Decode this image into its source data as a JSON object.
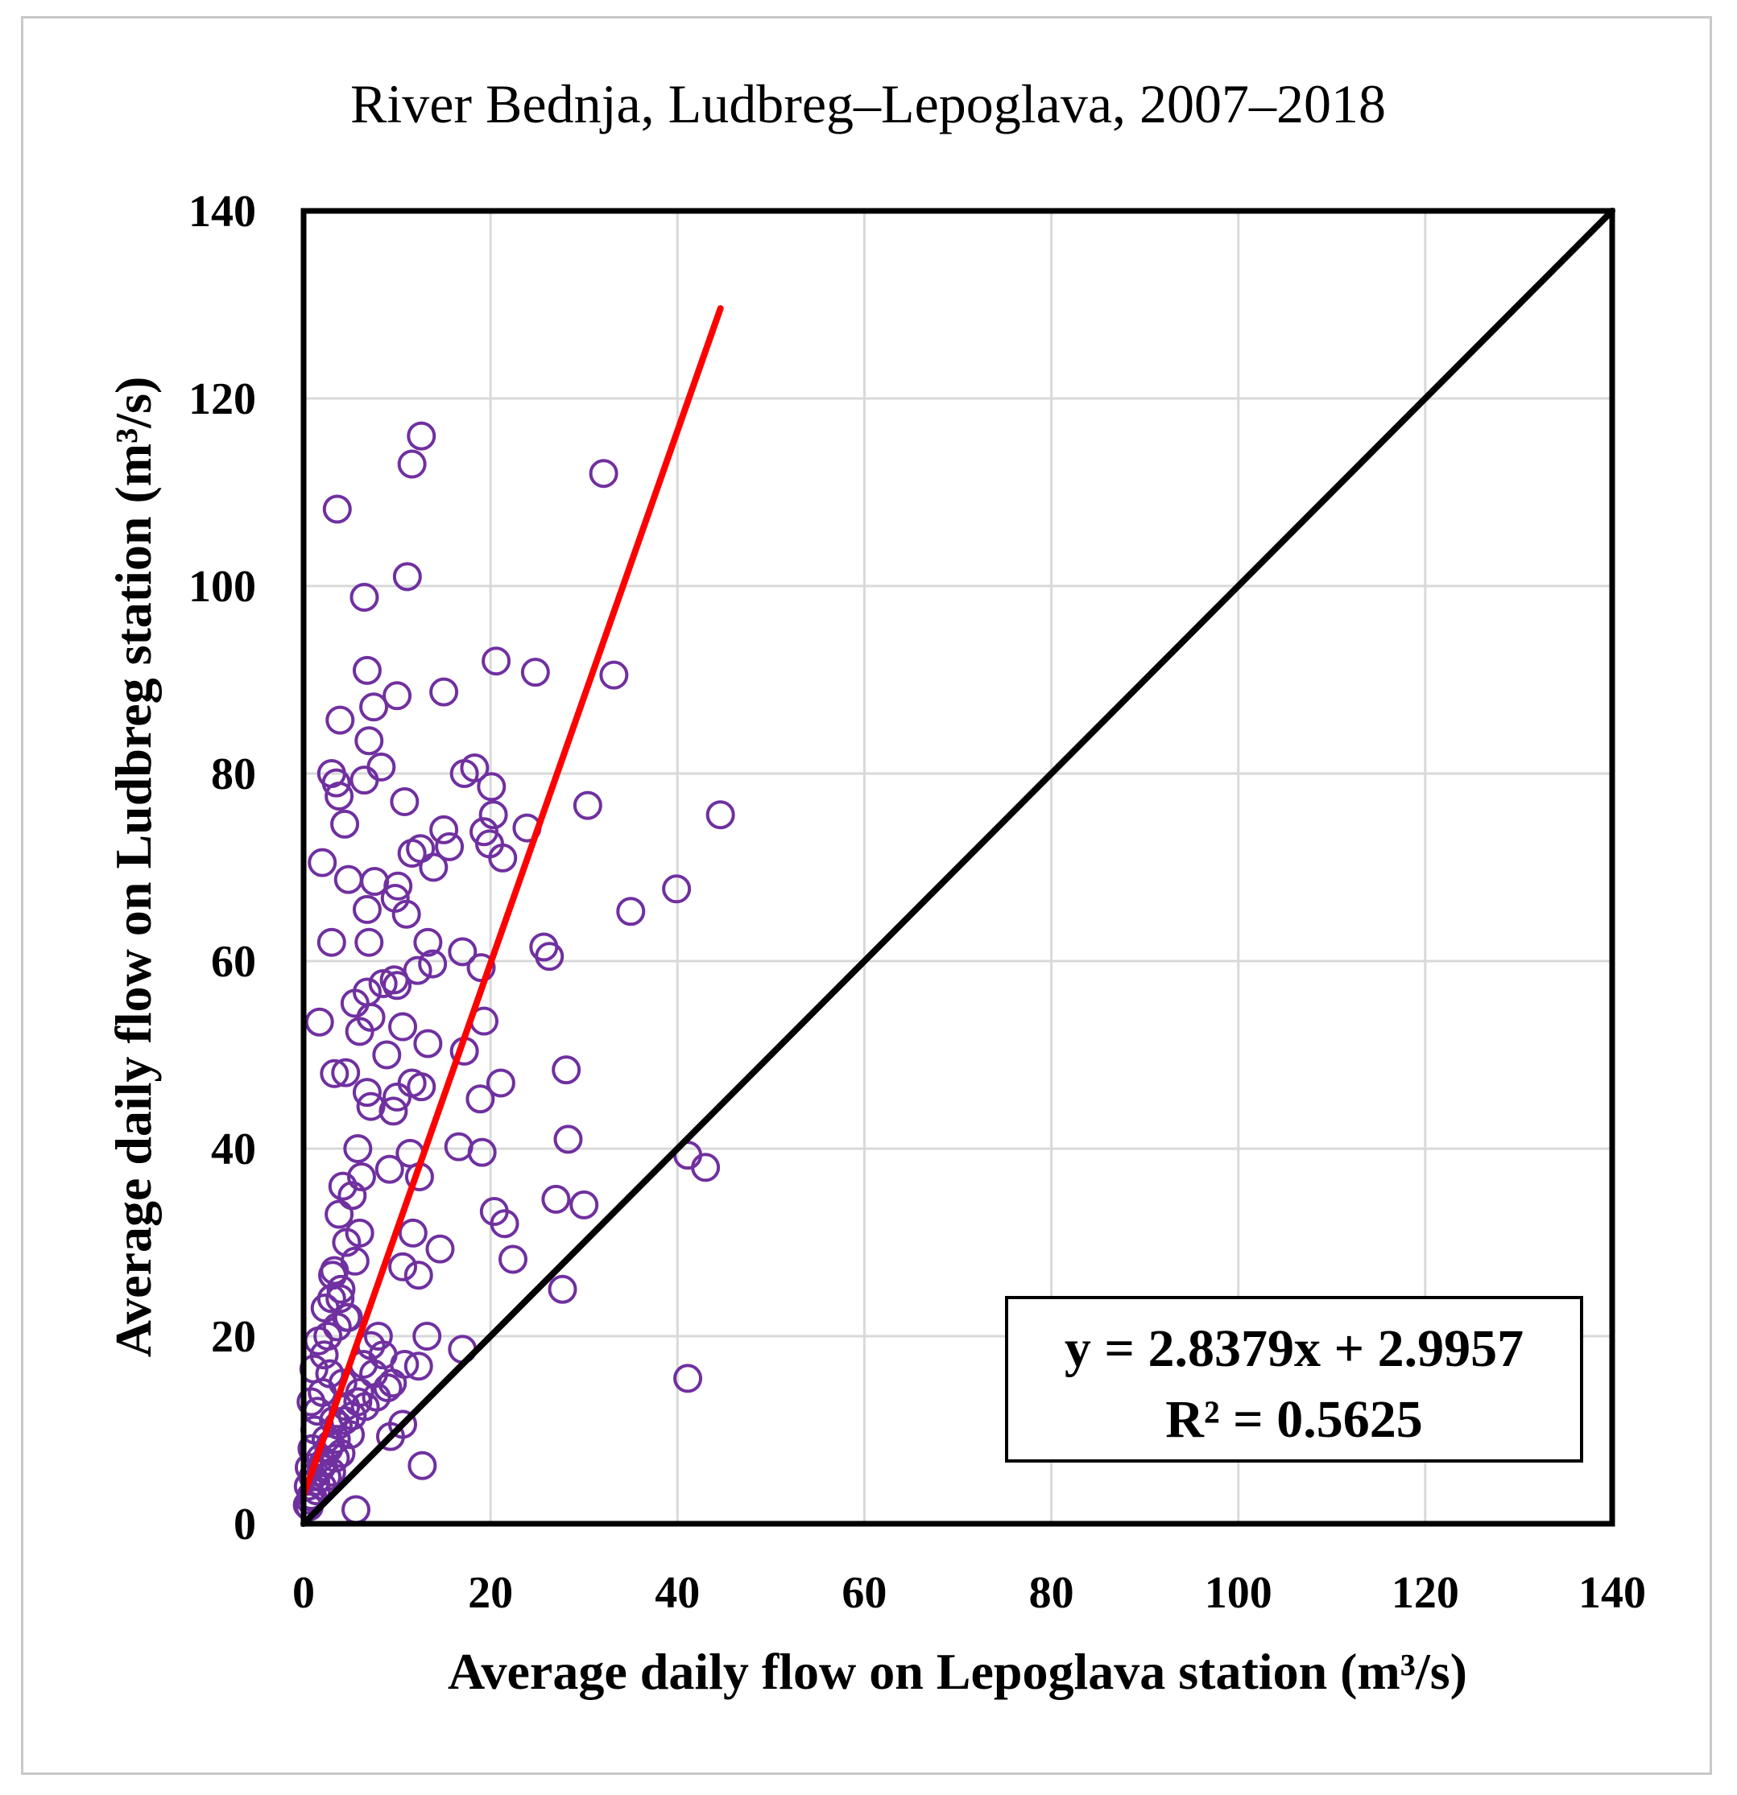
{
  "chart_data": {
    "type": "scatter",
    "title": "River Bednja, Ludbreg–Lepoglava, 2007–2018",
    "xlabel": "Average daily flow on Lepoglava station (m³/s)",
    "ylabel": "Average daily flow on Ludbreg station (m³/s)",
    "xlim": [
      0,
      140
    ],
    "ylim": [
      0,
      140
    ],
    "xticks": [
      0,
      20,
      40,
      60,
      80,
      100,
      120,
      140
    ],
    "yticks": [
      0,
      20,
      40,
      60,
      80,
      100,
      120,
      140
    ],
    "grid": true,
    "marker_color": "#7030a0",
    "series": [
      {
        "name": "Daily flows",
        "x": [
          12.6,
          11.6,
          32.1,
          3.6,
          11.1,
          6.5,
          20.6,
          24.8,
          33.2,
          6.8,
          15.0,
          10.0,
          7.5,
          3.9,
          7.0,
          8.3,
          6.5,
          3.0,
          3.5,
          3.8,
          17.2,
          18.3,
          20.1,
          44.6,
          10.8,
          30.4,
          20.3,
          23.9,
          4.4,
          15.0,
          19.3,
          21.3,
          19.9,
          12.5,
          11.6,
          15.6,
          13.9,
          2.0,
          4.8,
          7.6,
          10.1,
          9.8,
          39.9,
          6.8,
          11.0,
          35.0,
          3.0,
          7.0,
          13.3,
          25.7,
          26.3,
          17.0,
          19.0,
          9.7,
          12.2,
          13.8,
          10.0,
          5.5,
          6.8,
          8.5,
          7.2,
          1.7,
          10.6,
          6.0,
          19.3,
          17.2,
          13.3,
          8.9,
          3.3,
          28.1,
          4.5,
          21.1,
          11.6,
          12.6,
          6.8,
          18.9,
          7.2,
          10.0,
          9.6,
          28.3,
          16.6,
          19.1,
          11.4,
          41.1,
          43.0,
          9.2,
          12.4,
          27.0,
          30.0,
          20.4,
          21.5,
          11.7,
          14.6,
          22.4,
          10.6,
          12.3,
          27.7,
          17.0,
          13.2,
          12.3,
          41.1,
          10.6,
          12.7,
          9.3,
          5.6,
          4.2,
          3.8,
          4.6,
          5.2,
          6.0,
          3.3,
          4.0,
          5.5,
          4.8,
          3.0,
          2.6,
          2.2,
          3.6,
          2.8,
          2.0,
          1.5,
          1.2,
          0.9,
          0.6,
          0.5,
          1.0,
          1.8,
          2.4,
          3.2,
          4.2,
          7.2,
          8.0,
          6.4,
          5.8,
          4.4,
          3.5,
          2.7,
          1.9,
          0.8,
          0.4,
          0.7,
          1.3,
          2.1,
          2.9,
          3.7,
          4.5,
          6.0,
          7.5,
          8.5,
          9.0,
          5.0,
          4.0,
          3.0,
          2.0,
          1.0,
          0.6,
          1.4,
          2.5,
          3.4,
          5.2,
          6.6,
          7.8,
          9.5,
          10.8,
          4.6,
          3.9,
          3.1,
          2.3,
          1.6,
          1.1,
          0.8,
          5.8,
          6.2
        ],
        "y": [
          116.0,
          113.0,
          112.0,
          108.2,
          101.0,
          98.8,
          92.0,
          90.8,
          90.5,
          91.0,
          88.7,
          88.3,
          87.1,
          85.7,
          83.5,
          80.7,
          79.3,
          80.0,
          79.0,
          77.6,
          80.0,
          80.6,
          78.6,
          75.6,
          77.0,
          76.6,
          75.6,
          74.2,
          74.6,
          74.0,
          73.8,
          71.0,
          72.5,
          72.0,
          71.5,
          72.2,
          70.0,
          70.5,
          68.7,
          68.5,
          68.0,
          66.7,
          67.7,
          65.5,
          65.0,
          65.3,
          62.0,
          62.0,
          62.0,
          61.5,
          60.5,
          61.0,
          59.3,
          58.0,
          59.0,
          59.7,
          57.4,
          55.5,
          56.7,
          57.6,
          54.0,
          53.5,
          53.0,
          52.5,
          53.6,
          50.4,
          51.2,
          50.0,
          48.0,
          48.4,
          48.1,
          47.0,
          47.0,
          46.6,
          46.0,
          45.3,
          44.5,
          45.5,
          44.0,
          41.0,
          40.2,
          39.6,
          39.5,
          39.3,
          38.0,
          37.8,
          37.0,
          34.6,
          34.0,
          33.3,
          32.0,
          31.0,
          29.3,
          28.2,
          27.4,
          26.5,
          25.0,
          18.6,
          20.0,
          16.8,
          15.5,
          10.6,
          6.2,
          9.3,
          1.5,
          36.0,
          33.0,
          30.0,
          35.0,
          31.0,
          27.0,
          25.0,
          28.0,
          22.0,
          24.0,
          20.0,
          18.0,
          21.0,
          16.0,
          14.0,
          12.0,
          10.0,
          8.0,
          6.0,
          4.0,
          5.0,
          7.0,
          9.0,
          11.0,
          15.0,
          19.0,
          20.0,
          17.0,
          13.0,
          11.0,
          9.0,
          8.0,
          6.0,
          3.0,
          2.0,
          2.5,
          4.5,
          6.5,
          8.5,
          10.5,
          12.5,
          14.0,
          16.0,
          18.0,
          14.5,
          9.5,
          7.5,
          5.5,
          4.0,
          2.8,
          1.8,
          3.5,
          5.0,
          7.0,
          11.5,
          12.5,
          13.5,
          15.0,
          17.0,
          22.0,
          24.0,
          26.5,
          23.0,
          19.5,
          16.5,
          13.0,
          40.0,
          37.0
        ]
      }
    ],
    "lines": [
      {
        "name": "Linear trendline",
        "color": "#ff0000",
        "x": [
          0.1,
          44.6
        ],
        "y": [
          3.28,
          129.6
        ]
      },
      {
        "name": "1:1 line",
        "color": "#000000",
        "x": [
          0,
          140
        ],
        "y": [
          0,
          140
        ]
      }
    ],
    "annotations": {
      "equation": "y = 2.8379x + 2.9957",
      "r_squared": "R² = 0.5625"
    }
  }
}
